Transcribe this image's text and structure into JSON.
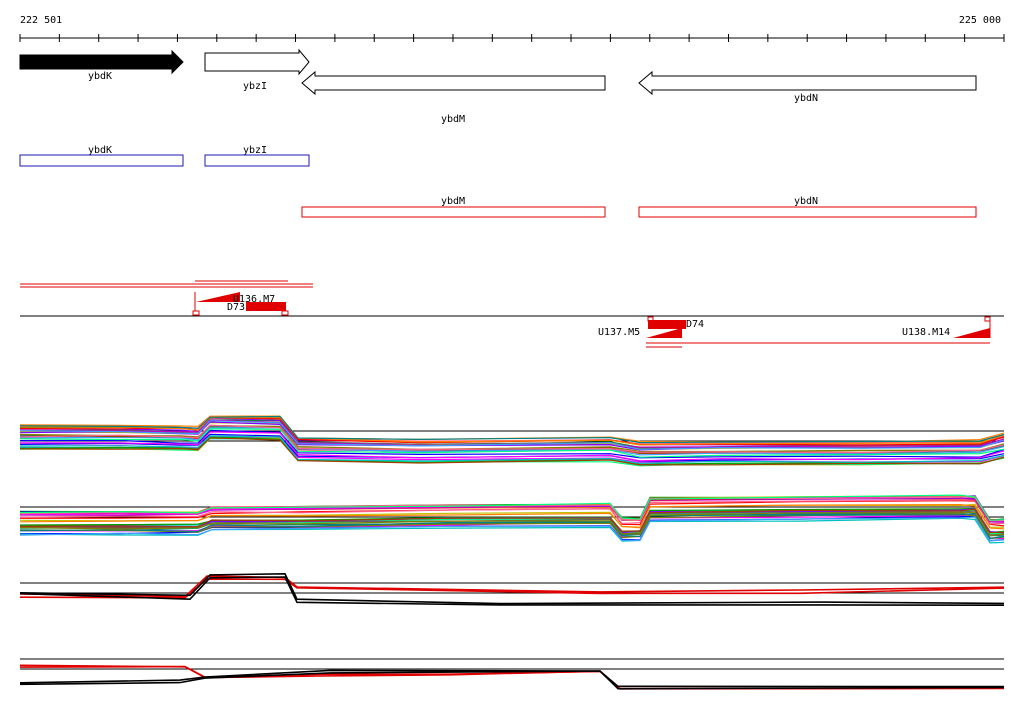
{
  "ruler": {
    "start_label": "222 501",
    "end_label": "225 000",
    "start_bp": 222501,
    "end_bp": 225000
  },
  "colors": {
    "gene": "#000000",
    "cds": "#1a1ab0",
    "anno": "#e00000",
    "line": "#000000"
  },
  "genes": [
    {
      "label": "ybdK",
      "filled": true
    },
    {
      "label": "ybzI",
      "filled": false
    },
    {
      "label": "ybdM",
      "filled": false
    },
    {
      "label": "ybdN",
      "filled": false
    }
  ],
  "cds_blue": [
    {
      "label": "ybdK"
    },
    {
      "label": "ybzI"
    }
  ],
  "cds_red": [
    {
      "label": "ybdM"
    },
    {
      "label": "ybdN"
    }
  ],
  "features": {
    "u136": "U136.M7",
    "d73": "D73",
    "u137": "U137.M5",
    "d74": "D74",
    "u138": "U138.M14"
  },
  "tracks": [
    {
      "name": "expression-track-1",
      "style": "multicolor"
    },
    {
      "name": "expression-track-2",
      "style": "multicolor"
    },
    {
      "name": "expression-track-3",
      "style": "red-black"
    },
    {
      "name": "expression-track-4",
      "style": "red-black"
    }
  ]
}
